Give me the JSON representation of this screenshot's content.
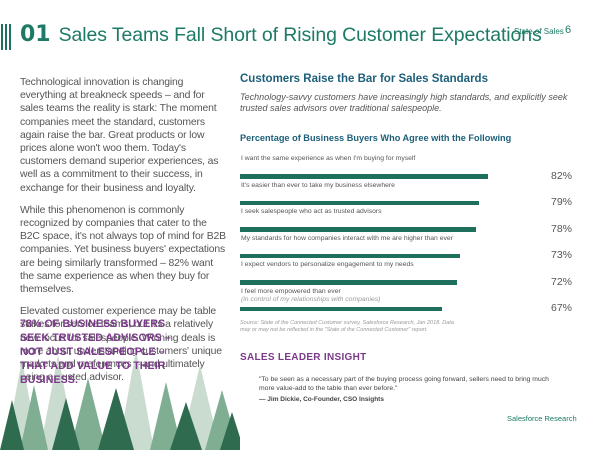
{
  "header": {
    "section_number": "01",
    "title": "Sales Teams Fall Short of Rising Customer Expectations",
    "report_name": "State of Sales",
    "page_number": "6"
  },
  "body": {
    "paragraphs": [
      "Technological innovation is changing everything at breakneck speeds – and for sales teams the reality is stark: The moment companies meet the standard, customers again raise the bar. Great products or low prices alone won't woo them. Today's customers demand superior experiences, as well as a commitment to their success, in exchange for their business and loyalty.",
      "While this phenomenon is commonly recognized by companies that cater to the B2C space, it's not always top of mind for B2B companies. Yet business buyers' expectations are being similarly transformed – 82% want the same experience as when they buy for themselves.",
      "Elevated customer experience may be table stakes for service teams, but it's a relatively new focus for salespeople. Winning deals is more about understanding customers' unique markets and preferences – and ultimately being a trusted advisor."
    ],
    "callout": "78% of business buyers seek trusted advisors – not just salespeople – that add value to their business."
  },
  "right_panel": {
    "title": "Customers Raise the Bar for Sales Standards",
    "subtitle": "Technology-savvy customers have increasingly high standards, and explicitly seek trusted sales advisors over traditional salespeople."
  },
  "chart_data": {
    "type": "bar",
    "orientation": "horizontal",
    "title": "Percentage of Business Buyers Who Agree with the Following",
    "unit": "%",
    "xlim": [
      0,
      100
    ],
    "categories": [
      "I want the same experience as when I'm buying for myself",
      "It's easier than ever to take my business elsewhere",
      "I seek salespeople who act as trusted advisors",
      "My standards for how companies interact with me are higher than ever",
      "I expect vendors to personalize engagement to my needs",
      "I feel more empowered than ever"
    ],
    "category_notes": [
      "",
      "",
      "",
      "",
      "",
      "(in control of my relationships with companies)"
    ],
    "values": [
      82,
      79,
      78,
      73,
      72,
      67
    ],
    "value_labels": [
      "82%",
      "79%",
      "78%",
      "73%",
      "72%",
      "67%"
    ],
    "bar_color": "#1e6f5c",
    "source": "Source: State of the Connected Customer survey, Salesforce Research, Jan 2018. Data may or may not be reflected in the \"State of the Connected Customer\" report."
  },
  "insight": {
    "header": "SALES LEADER INSIGHT",
    "quote": "\"To be seen as a necessary part of the buying process going forward, sellers need to bring much more value-add to the table than ever before.\"",
    "attribution": "— Jim Dickie, Co-Founder, CSO Insights"
  },
  "footer": {
    "text": "Salesforce Research"
  },
  "colors": {
    "teal": "#1d7a66",
    "bar": "#1e6f5c",
    "purple": "#7b3a8a",
    "navy": "#1d5f7a",
    "tree_light": "#c9dccf",
    "tree_mid": "#7fae93",
    "tree_dark": "#2f6b4f"
  }
}
